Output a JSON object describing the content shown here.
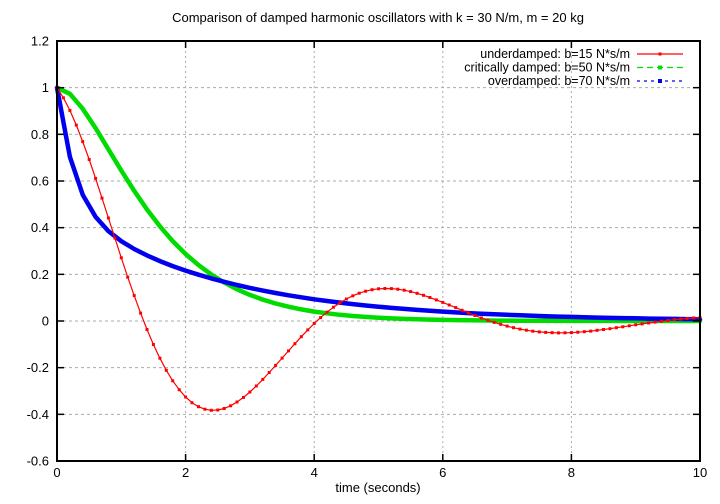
{
  "chart_data": {
    "type": "line",
    "title": "Comparison of damped harmonic oscillators with k = 30 N/m, m = 20 kg",
    "xlabel": "time (seconds)",
    "ylabel": "",
    "xlim": [
      0,
      10
    ],
    "ylim": [
      -0.6,
      1.2
    ],
    "grid": true,
    "legend_position": "top-right-inside",
    "xticks": [
      {
        "t": 0,
        "label": "0"
      },
      {
        "t": 2,
        "label": "2"
      },
      {
        "t": 4,
        "label": "4"
      },
      {
        "t": 6,
        "label": "6"
      },
      {
        "t": 8,
        "label": "8"
      },
      {
        "t": 10,
        "label": "10"
      }
    ],
    "yticks": [
      {
        "v": 1.2,
        "label": "1.2"
      },
      {
        "v": 1.0,
        "label": "1"
      },
      {
        "v": 0.8,
        "label": "0.8"
      },
      {
        "v": 0.6,
        "label": "0.6"
      },
      {
        "v": 0.4,
        "label": "0.4"
      },
      {
        "v": 0.2,
        "label": "0.2"
      },
      {
        "v": 0.0,
        "label": "0"
      },
      {
        "v": -0.2,
        "label": "-0.2"
      },
      {
        "v": -0.4,
        "label": "-0.4"
      },
      {
        "v": -0.6,
        "label": "-0.6"
      }
    ],
    "draw_order": [
      1,
      2,
      0
    ],
    "series": [
      {
        "name": "underdamped",
        "label": "underdamped: b=15 N*s/m",
        "color": "#ff0000",
        "line_width": 1.2,
        "legend_dash": "",
        "marker": "square",
        "marker_size": 3,
        "plot_markers": true,
        "x_start": 0,
        "x_step": 0.1,
        "values": [
          1.0,
          0.9566,
          0.9026,
          0.8395,
          0.7688,
          0.6921,
          0.611,
          0.5269,
          0.4415,
          0.3553,
          0.2707,
          0.1882,
          0.109,
          0.0338,
          -0.0363,
          -0.1009,
          -0.1594,
          -0.2113,
          -0.2564,
          -0.2946,
          -0.3259,
          -0.35,
          -0.3674,
          -0.3782,
          -0.3828,
          -0.3816,
          -0.3749,
          -0.3633,
          -0.3473,
          -0.3274,
          -0.3043,
          -0.2784,
          -0.2504,
          -0.2208,
          -0.1902,
          -0.1591,
          -0.128,
          -0.0973,
          -0.0671,
          -0.0381,
          -0.0109,
          0.0146,
          0.038,
          0.0591,
          0.0779,
          0.0942,
          0.1079,
          0.1191,
          0.1278,
          0.1341,
          0.1378,
          0.1394,
          0.1388,
          0.1363,
          0.132,
          0.1261,
          0.1188,
          0.1103,
          0.1008,
          0.0906,
          0.0798,
          0.0686,
          0.0573,
          0.0459,
          0.0346,
          0.0236,
          0.013,
          0.0034,
          -0.0058,
          -0.0143,
          -0.0219,
          -0.0287,
          -0.0346,
          -0.0395,
          -0.0436,
          -0.0467,
          -0.0489,
          -0.0502,
          -0.0508,
          -0.0505,
          -0.0496,
          -0.0479,
          -0.0458,
          -0.0431,
          -0.04,
          -0.0365,
          -0.0328,
          -0.0288,
          -0.0248,
          -0.0206,
          -0.0165,
          -0.0125,
          -0.0084,
          -0.0047,
          -0.0011,
          0.0023,
          0.0054,
          0.0081,
          0.0106,
          0.0127,
          0.0145
        ]
      },
      {
        "name": "critically-damped",
        "label": "critically damped: b=50 N*s/m",
        "color": "#00dc00",
        "line_width": 4.5,
        "legend_dash": "6 4",
        "marker": "square",
        "marker_size": 4,
        "plot_markers": false,
        "x_start": 0,
        "x_step": 0.2,
        "values": [
          1.0,
          0.9735,
          0.9098,
          0.8266,
          0.7358,
          0.6446,
          0.5578,
          0.4779,
          0.406,
          0.3425,
          0.2873,
          0.2397,
          0.1991,
          0.1648,
          0.1359,
          0.1117,
          0.0916,
          0.0749,
          0.0611,
          0.0497,
          0.0404,
          0.0328,
          0.0266,
          0.0215,
          0.0174,
          0.014,
          0.0113,
          0.0091,
          0.0073,
          0.0059,
          0.0047,
          0.0038,
          0.003,
          0.0024,
          0.0019,
          0.0015,
          0.0012,
          0.001,
          0.0008,
          0.0006,
          0.0005,
          0.0004,
          0.0003,
          0.0003,
          0.0002,
          0.0002,
          0.0001,
          0.0001,
          0.0001,
          0.0001,
          0.0001
        ]
      },
      {
        "name": "overdamped",
        "label": "overdamped: b=70 N*s/m",
        "color": "#0000ee",
        "line_width": 4.5,
        "legend_dash": "3 4",
        "marker": "square",
        "marker_size": 4,
        "plot_markers": false,
        "x_start": 0,
        "x_step": 0.2,
        "values": [
          1.0,
          0.7031,
          0.5411,
          0.4463,
          0.3854,
          0.3422,
          0.3087,
          0.281,
          0.2569,
          0.2355,
          0.2162,
          0.1986,
          0.1826,
          0.1678,
          0.1543,
          0.1418,
          0.1304,
          0.1199,
          0.1102,
          0.1014,
          0.0932,
          0.0857,
          0.0788,
          0.0724,
          0.0666,
          0.0612,
          0.0563,
          0.0518,
          0.0476,
          0.0438,
          0.0402,
          0.037,
          0.034,
          0.0313,
          0.0287,
          0.0264,
          0.0243,
          0.0223,
          0.0205,
          0.0189,
          0.0174,
          0.016,
          0.0147,
          0.0135,
          0.0124,
          0.0114,
          0.0105,
          0.0096,
          0.0089,
          0.0082,
          0.0075
        ]
      }
    ]
  }
}
